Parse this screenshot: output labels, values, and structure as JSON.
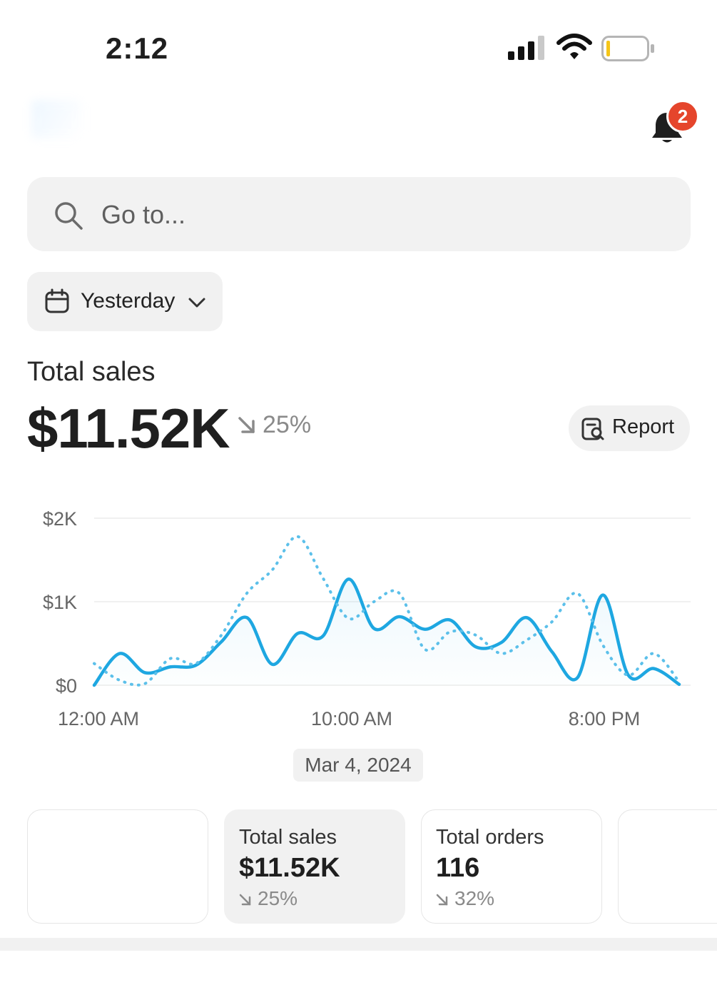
{
  "status_bar": {
    "time": "2:12"
  },
  "header": {
    "notification_count": "2"
  },
  "search": {
    "placeholder": "Go to..."
  },
  "date_filter": {
    "label": "Yesterday"
  },
  "summary": {
    "label": "Total sales",
    "value": "$11.52K",
    "change": "25%",
    "change_direction": "down"
  },
  "report_button": {
    "label": "Report"
  },
  "chart_date": "Mar 4, 2024",
  "cards": [
    {
      "title": "Total sales",
      "value": "$11.52K",
      "change": "25%"
    },
    {
      "title": "Total orders",
      "value": "116",
      "change": "32%"
    }
  ],
  "colors": {
    "accent": "#1ea7e1",
    "badge": "#e5452c"
  },
  "chart_data": {
    "type": "line",
    "xlabel": "",
    "ylabel": "",
    "x_ticks": [
      "12:00 AM",
      "10:00 AM",
      "8:00 PM"
    ],
    "y_ticks": [
      "$0",
      "$1K",
      "$2K"
    ],
    "ylim": [
      0,
      2000
    ],
    "xlim": [
      0,
      23
    ],
    "grid": true,
    "series": [
      {
        "style": "solid",
        "x": [
          0,
          1,
          2,
          3,
          4,
          5,
          6,
          7,
          8,
          9,
          10,
          11,
          12,
          13,
          14,
          15,
          16,
          17,
          18,
          19,
          20,
          21,
          22,
          23
        ],
        "values": [
          0,
          380,
          150,
          220,
          240,
          520,
          810,
          250,
          620,
          590,
          1270,
          680,
          820,
          670,
          780,
          460,
          510,
          810,
          400,
          90,
          1080,
          120,
          200,
          10
        ]
      },
      {
        "style": "dotted",
        "x": [
          0,
          1,
          2,
          3,
          4,
          5,
          6,
          7,
          8,
          9,
          10,
          11,
          12,
          13,
          14,
          15,
          16,
          17,
          18,
          19,
          20,
          21,
          22,
          23
        ],
        "values": [
          260,
          60,
          20,
          320,
          260,
          600,
          1100,
          1380,
          1780,
          1280,
          800,
          1000,
          1100,
          430,
          640,
          600,
          380,
          540,
          760,
          1100,
          480,
          120,
          380,
          40
        ]
      }
    ]
  }
}
